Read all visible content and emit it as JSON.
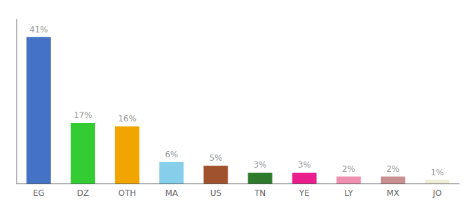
{
  "chart_data": {
    "type": "bar",
    "categories": [
      "EG",
      "DZ",
      "OTH",
      "MA",
      "US",
      "TN",
      "YE",
      "LY",
      "MX",
      "JO"
    ],
    "values": [
      41,
      17,
      16,
      6,
      5,
      3,
      3,
      2,
      2,
      1
    ],
    "value_labels": [
      "41%",
      "17%",
      "16%",
      "6%",
      "5%",
      "3%",
      "3%",
      "2%",
      "2%",
      "1%"
    ],
    "colors": [
      "#4472c4",
      "#33cc33",
      "#f0a500",
      "#87ceeb",
      "#a0522d",
      "#2d7a2d",
      "#e91e8c",
      "#f090b0",
      "#c89090",
      "#f0eed8"
    ],
    "ylim": [
      0,
      46
    ],
    "data_labels": true,
    "tick_labels": "x",
    "grid": false
  }
}
